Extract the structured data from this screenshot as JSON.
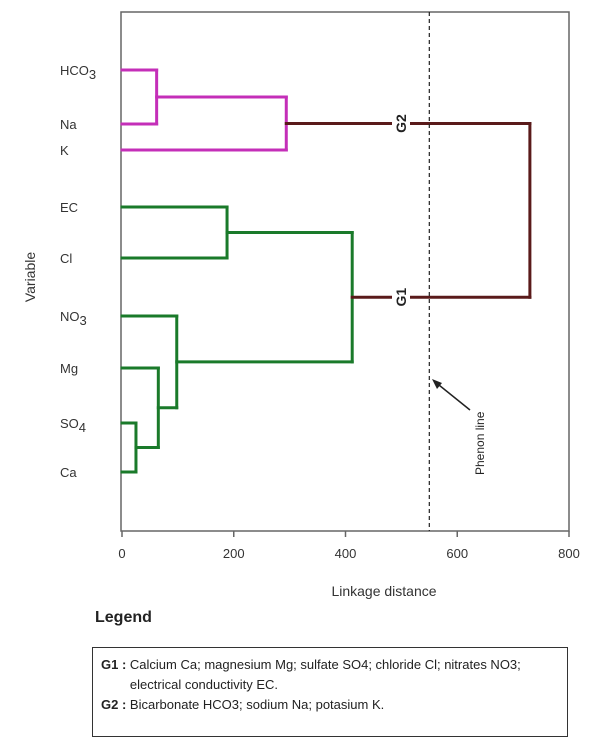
{
  "chart_data": {
    "type": "dendrogram",
    "orientation": "horizontal",
    "xlabel": "Linkage distance",
    "ylabel": "Variable",
    "xlim": [
      0,
      800
    ],
    "xticks": [
      0,
      200,
      400,
      600,
      800
    ],
    "leaves": [
      {
        "id": "HCO3",
        "base": "HCO",
        "sub": "3"
      },
      {
        "id": "Na",
        "base": "Na",
        "sub": ""
      },
      {
        "id": "K",
        "base": "K",
        "sub": ""
      },
      {
        "id": "EC",
        "base": "EC",
        "sub": ""
      },
      {
        "id": "Cl",
        "base": "Cl",
        "sub": ""
      },
      {
        "id": "NO3",
        "base": "NO",
        "sub": "3"
      },
      {
        "id": "Mg",
        "base": "Mg",
        "sub": ""
      },
      {
        "id": "SO4",
        "base": "SO",
        "sub": "4"
      },
      {
        "id": "Ca",
        "base": "Ca",
        "sub": ""
      }
    ],
    "merges": [
      {
        "id": "m1",
        "children": [
          "SO4",
          "Ca"
        ],
        "height": 25,
        "color": "#1a7a2a"
      },
      {
        "id": "m2",
        "children": [
          "Mg",
          "m1"
        ],
        "height": 65,
        "color": "#1a7a2a"
      },
      {
        "id": "m3",
        "children": [
          "NO3",
          "m2"
        ],
        "height": 98,
        "color": "#1a7a2a"
      },
      {
        "id": "m4",
        "children": [
          "EC",
          "Cl"
        ],
        "height": 188,
        "color": "#1a7a2a"
      },
      {
        "id": "m5",
        "children": [
          "m4",
          "m3"
        ],
        "height": 412,
        "color": "#1a7a2a"
      },
      {
        "id": "m6",
        "children": [
          "HCO3",
          "Na"
        ],
        "height": 62,
        "color": "#c42fb8"
      },
      {
        "id": "m7",
        "children": [
          "m6",
          "K"
        ],
        "height": 294,
        "color": "#c42fb8"
      },
      {
        "id": "m8",
        "children": [
          "m7",
          "m5"
        ],
        "height": 730,
        "color": "#5a1a1a"
      }
    ],
    "groups": [
      {
        "label": "G2",
        "node": "m7"
      },
      {
        "label": "G1",
        "node": "m5"
      }
    ],
    "phenon_line": {
      "x": 550,
      "label": "Phenon line"
    }
  },
  "legend": {
    "title": "Legend",
    "entries": [
      {
        "key": "G1 : ",
        "text": "Calcium Ca; magnesium Mg; sulfate SO4; chloride Cl; nitrates NO3; electrical conductivity EC."
      },
      {
        "key": "G2 : ",
        "text": "Bicarbonate HCO3; sodium Na; potasium K."
      }
    ]
  }
}
